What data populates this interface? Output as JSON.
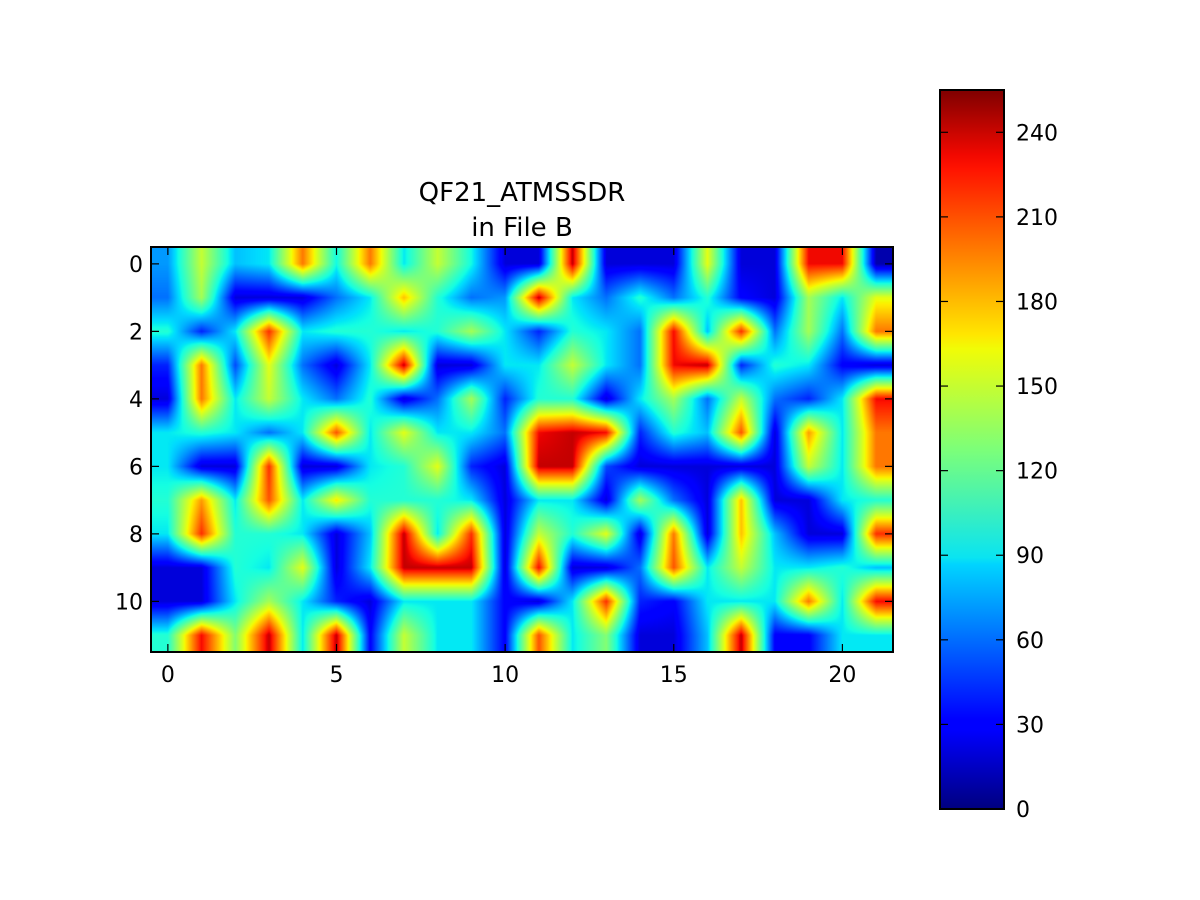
{
  "chart_data": {
    "type": "heatmap",
    "title_lines": [
      "QF21_ATMSSDR",
      "in File B"
    ],
    "xlabel": "",
    "ylabel": "",
    "colormap": "jet",
    "interpolation": "bilinear",
    "rows": 12,
    "cols": 22,
    "x_ticks": [
      0,
      5,
      10,
      15,
      20
    ],
    "y_ticks": [
      0,
      2,
      4,
      6,
      8,
      10
    ],
    "xlim": [
      -0.5,
      21.5
    ],
    "ylim": [
      11.5,
      -0.5
    ],
    "colorbar": {
      "min": 0,
      "max": 255,
      "ticks": [
        0,
        30,
        60,
        90,
        120,
        150,
        180,
        210,
        240
      ]
    },
    "values": [
      [
        70,
        150,
        80,
        90,
        200,
        95,
        200,
        90,
        150,
        95,
        20,
        20,
        240,
        20,
        20,
        20,
        160,
        20,
        20,
        230,
        230,
        10
      ],
      [
        60,
        140,
        20,
        20,
        20,
        60,
        90,
        180,
        100,
        60,
        70,
        240,
        90,
        60,
        100,
        60,
        100,
        30,
        20,
        140,
        90,
        160
      ],
      [
        100,
        40,
        90,
        220,
        90,
        100,
        100,
        90,
        100,
        140,
        90,
        40,
        100,
        90,
        60,
        230,
        80,
        220,
        60,
        140,
        60,
        200
      ],
      [
        40,
        200,
        50,
        160,
        60,
        20,
        90,
        240,
        20,
        20,
        90,
        90,
        150,
        90,
        60,
        230,
        240,
        40,
        100,
        90,
        30,
        20
      ],
      [
        20,
        200,
        90,
        150,
        90,
        60,
        100,
        20,
        60,
        140,
        40,
        100,
        100,
        20,
        90,
        140,
        60,
        150,
        60,
        40,
        90,
        230
      ],
      [
        90,
        100,
        90,
        60,
        90,
        210,
        90,
        160,
        90,
        90,
        60,
        230,
        240,
        230,
        40,
        100,
        80,
        210,
        20,
        190,
        90,
        200
      ],
      [
        90,
        20,
        20,
        220,
        20,
        20,
        90,
        100,
        160,
        40,
        20,
        240,
        240,
        50,
        20,
        20,
        20,
        20,
        20,
        150,
        90,
        200
      ],
      [
        100,
        190,
        90,
        210,
        90,
        170,
        100,
        100,
        100,
        90,
        20,
        90,
        90,
        20,
        140,
        60,
        20,
        180,
        20,
        20,
        90,
        100
      ],
      [
        90,
        220,
        100,
        100,
        90,
        20,
        80,
        240,
        90,
        220,
        20,
        150,
        100,
        160,
        20,
        200,
        20,
        180,
        80,
        20,
        20,
        220
      ],
      [
        20,
        20,
        100,
        90,
        160,
        20,
        90,
        240,
        240,
        240,
        20,
        230,
        20,
        20,
        60,
        210,
        90,
        150,
        90,
        90,
        100,
        80
      ],
      [
        20,
        20,
        90,
        140,
        90,
        40,
        20,
        90,
        90,
        90,
        30,
        20,
        90,
        220,
        40,
        30,
        90,
        90,
        90,
        200,
        90,
        230
      ],
      [
        100,
        230,
        130,
        240,
        90,
        240,
        30,
        150,
        90,
        90,
        30,
        210,
        90,
        130,
        20,
        20,
        80,
        240,
        30,
        30,
        90,
        90
      ]
    ]
  }
}
